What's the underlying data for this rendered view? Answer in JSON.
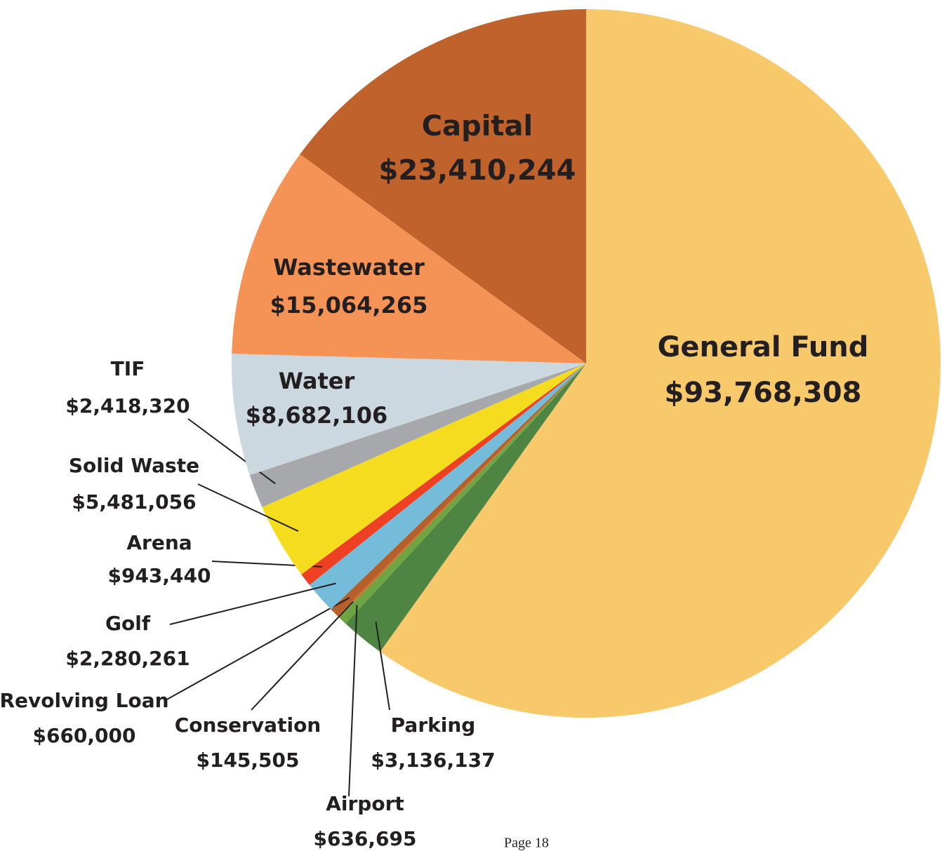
{
  "chart_data": {
    "type": "pie",
    "categories": [
      "General Fund",
      "Parking",
      "Airport",
      "Conservation",
      "Revolving Loan",
      "Golf",
      "Arena",
      "Solid Waste",
      "TIF",
      "Water",
      "Wastewater",
      "Capital"
    ],
    "values": [
      93768308,
      3136137,
      636695,
      145505,
      660000,
      2280261,
      943440,
      5481056,
      2418320,
      8682106,
      15064265,
      23410244
    ],
    "value_labels": [
      "$93,768,308",
      "$3,136,137",
      "$636,695",
      "$145,505",
      "$660,000",
      "$2,280,261",
      "$943,440",
      "$5,481,056",
      "$2,418,320",
      "$8,682,106",
      "$15,064,265",
      "$23,410,244"
    ],
    "colors": [
      "#f7c96a",
      "#4f8542",
      "#6fa443",
      "#c9742f",
      "#b5602a",
      "#74bcd9",
      "#ee4022",
      "#f5dc1f",
      "#a6a8ab",
      "#cbd8e0",
      "#f59356",
      "#bf622b"
    ]
  },
  "footer": "Page 18"
}
